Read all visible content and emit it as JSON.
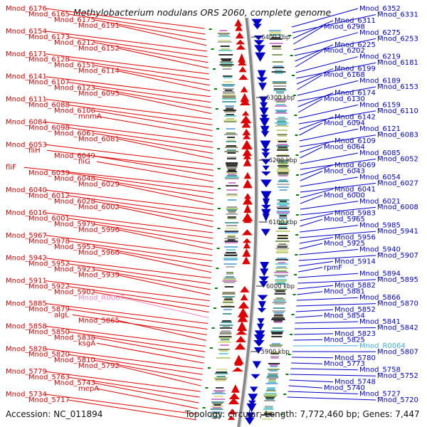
{
  "title": "Methylobacterium nodulans ORS 2060, complete genome",
  "accession": "Accession: NC_011894",
  "topology": "Topology: circular; Length: 7,772,460 bp; Genes: 7,447",
  "colors": {
    "left_strand": "#e00000",
    "right_strand": "#0000cc",
    "rna_left": "#ff80c0",
    "rna_right": "#40b0e0",
    "backbone": "#888888",
    "tick": "#008000"
  },
  "scale_labels": [
    "6400 kbp",
    "6300 kbp",
    "6200 kbp",
    "6100 kbp",
    "6000 kbp",
    "5900 kbp"
  ],
  "left_genes": [
    "Mnod_6176",
    "Mnod_6165",
    "Mnod_6175",
    "Mnod_6191",
    "Mnod_6154",
    "Mnod_6173",
    "Mnod_6212",
    "Mnod_6152",
    "Mnod_6171",
    "Mnod_6128",
    "Mnod_6151",
    "Mnod_6114",
    "Mnod_6141",
    "Mnod_6107",
    "Mnod_6123",
    "Mnod_6095",
    "Mnod_6111",
    "Mnod_6088",
    "Mnod_6106",
    "mnmA",
    "Mnod_6084",
    "Mnod_6098",
    "Mnod_6061",
    "Mnod_6081",
    "Mnod_6053",
    "fliH",
    "Mnod_6049",
    "fliG",
    "fliF",
    "Mnod_6039",
    "Mnod_6048",
    "Mnod_6029",
    "Mnod_6040",
    "Mnod_6012",
    "Mnod_6028",
    "Mnod_6002",
    "Mnod_6016",
    "Mnod_6001",
    "Mnod_5979",
    "Mnod_5996",
    "Mnod_5967",
    "Mnod_5978",
    "Mnod_5953",
    "Mnod_5966",
    "Mnod_5942",
    "Mnod_5952",
    "Mnod_5923",
    "Mnod_5939",
    "Mnod_5911",
    "Mnod_5922",
    "Mnod_5902",
    "Mnod_R0067",
    "Mnod_5885",
    "Mnod_5879",
    "algL",
    "Mnod_5865",
    "Mnod_5858",
    "Mnod_5850",
    "Mnod_5838",
    "ksgA",
    "Mnod_5828",
    "Mnod_5820",
    "Mnod_5810",
    "Mnod_5792",
    "Mnod_5779",
    "Mnod_5763",
    "Mnod_5743",
    "mepA",
    "Mnod_5734",
    "Mnod_5717"
  ],
  "right_genes": [
    "Mnod_6352",
    "Mnod_6331",
    "Mnod_6311",
    "Mnod_6298",
    "Mnod_6275",
    "Mnod_6253",
    "Mnod_6225",
    "Mnod_6202",
    "Mnod_6219",
    "Mnod_6181",
    "Mnod_6199",
    "Mnod_6168",
    "Mnod_6189",
    "Mnod_6153",
    "Mnod_6174",
    "Mnod_6130",
    "Mnod_6159",
    "Mnod_6110",
    "Mnod_6142",
    "Mnod_6094",
    "Mnod_6121",
    "Mnod_6083",
    "Mnod_6109",
    "Mnod_6064",
    "Mnod_6085",
    "Mnod_6052",
    "Mnod_6069",
    "Mnod_6043",
    "Mnod_6054",
    "Mnod_6027",
    "Mnod_6041",
    "Mnod_6000",
    "Mnod_6021",
    "Mnod_6008",
    "Mnod_5983",
    "Mnod_5965",
    "Mnod_5985",
    "Mnod_5941",
    "Mnod_5956",
    "Mnod_5925",
    "Mnod_5940",
    "Mnod_5907",
    "Mnod_5914",
    "rpmF",
    "Mnod_5894",
    "Mnod_5895",
    "Mnod_5882",
    "Mnod_5881",
    "Mnod_5866",
    "Mnod_5870",
    "Mnod_5852",
    "Mnod_5854",
    "Mnod_5841",
    "Mnod_5842",
    "Mnod_5823",
    "Mnod_5825",
    "Mnod_R0064",
    "Mnod_5807",
    "Mnod_5780",
    "Mnod_5773",
    "Mnod_5758",
    "Mnod_5752",
    "Mnod_5748",
    "Mnod_5740",
    "Mnod_5727",
    "Mnod_5720"
  ]
}
